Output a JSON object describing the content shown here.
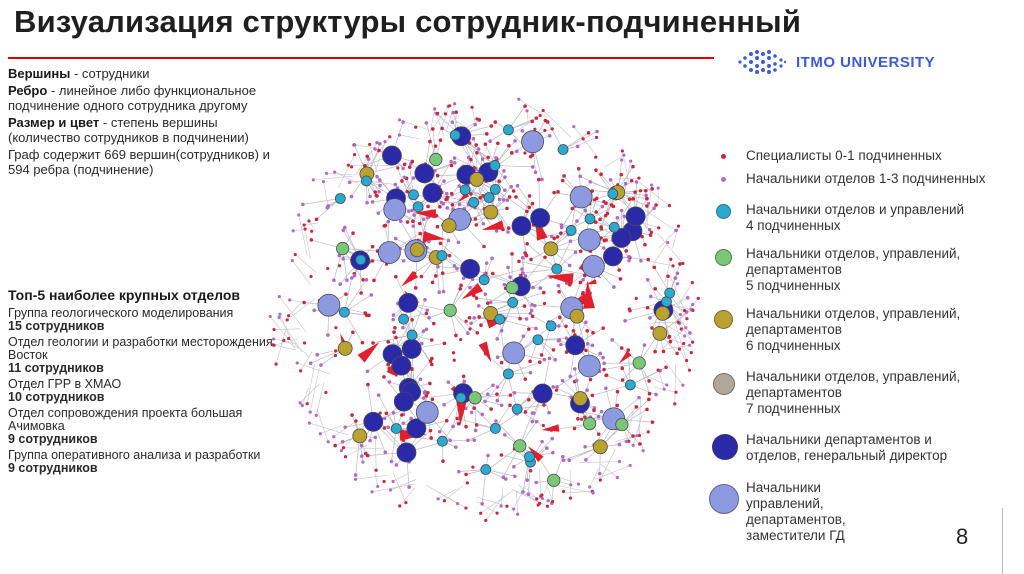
{
  "title": "Визуализация структуры сотрудник-подчиненный",
  "logo": {
    "text": "ITMO UNIVERSITY",
    "color": "#3d5bd6",
    "icon": "itmo-dots-logo"
  },
  "definitions": {
    "vertices_term": "Вершины",
    "vertices_desc": " - сотрудники",
    "edge_term": "Ребро",
    "edge_desc": " - линейное либо функциональное подчинение одного сотрудника другому",
    "size_term": "Размер и цвет",
    "size_desc": " - степень вершины (количество сотрудников в подчинении)",
    "graph_info": "Граф содержит 669 вершин(сотрудников) и 594 ребра (подчинение)"
  },
  "top5": {
    "header": "Топ-5 наиболее крупных отделов",
    "departments": [
      {
        "name": "Группа геологического моделирования",
        "count": "15 сотрудников"
      },
      {
        "name": "Отдел геологии и разработки месторождения Восток",
        "count": "11 сотрудников"
      },
      {
        "name": "Отдел ГРР в ХМАО",
        "count": "10 сотрудников"
      },
      {
        "name": "Отдел сопровождения проекта большая Ачимовка",
        "count": "9 сотрудников"
      },
      {
        "name": "Группа оперативного анализа и разработки",
        "count": "9 сотрудников"
      }
    ]
  },
  "legend": [
    {
      "label": "Специалисты  0-1 подчиненных",
      "color": "#c8283a"
    },
    {
      "label": "Начальники отделов 1-3 подчиненных",
      "color": "#b06ac9"
    },
    {
      "label": "Начальники отделов и управлений\n4 подчиненных",
      "color": "#2aaad0"
    },
    {
      "label": "Начальники отделов, управлений,\nдепартаментов\n5 подчиненных",
      "color": "#78c878"
    },
    {
      "label": "Начальники отделов, управлений,\nдепартаментов\n6 подчиненных",
      "color": "#b9a22e"
    },
    {
      "label": "Начальники отделов, управлений,\nдепартаментов\n7 подчиненных",
      "color": "#b0a89a"
    },
    {
      "label": "Начальники департаментов и\nотделов, генеральный директор",
      "color": "#2a2aa8"
    },
    {
      "label": "Начальники\nуправлений,\nдепартаментов,\nзаместители ГД",
      "color": "#8e9ae0"
    }
  ],
  "page_number": "8"
}
